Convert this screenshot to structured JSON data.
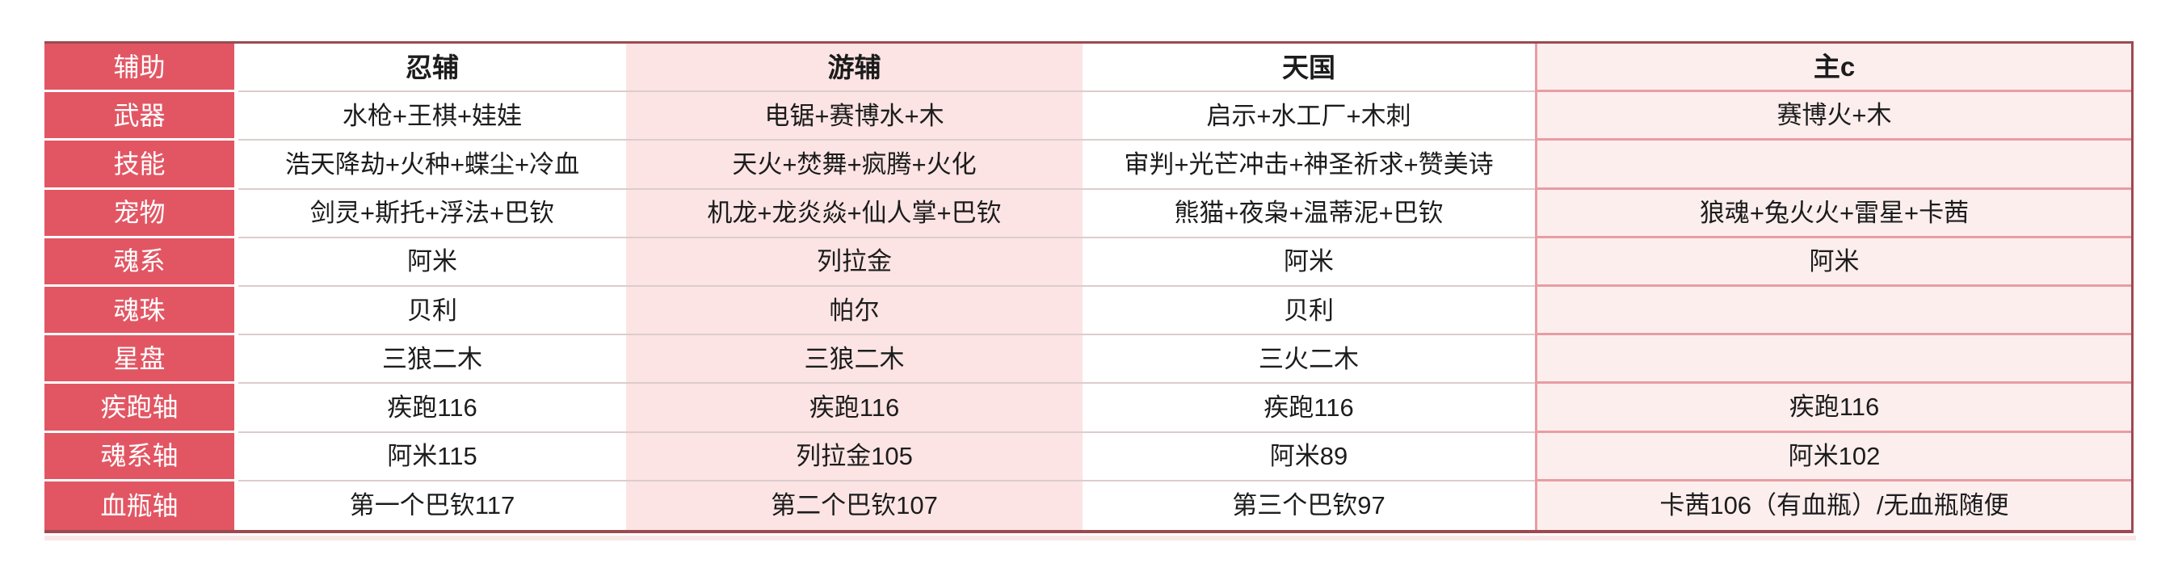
{
  "table": {
    "rows": [
      {
        "label": "辅助",
        "cells": [
          "忍辅",
          "游辅",
          "天国",
          "主c"
        ]
      },
      {
        "label": "武器",
        "cells": [
          "水枪+王棋+娃娃",
          "电锯+赛博水+木",
          "启示+水工厂+木刺",
          "赛博火+木"
        ]
      },
      {
        "label": "技能",
        "cells": [
          "浩天降劫+火种+蝶尘+冷血",
          "天火+焚舞+疯腾+火化",
          "审判+光芒冲击+神圣祈求+赞美诗",
          ""
        ]
      },
      {
        "label": "宠物",
        "cells": [
          "剑灵+斯托+浮法+巴钦",
          "机龙+龙炎焱+仙人掌+巴钦",
          "熊猫+夜枭+温蒂泥+巴钦",
          "狼魂+兔火火+雷星+卡茜"
        ]
      },
      {
        "label": "魂系",
        "cells": [
          "阿米",
          "列拉金",
          "阿米",
          "阿米"
        ]
      },
      {
        "label": "魂珠",
        "cells": [
          "贝利",
          "帕尔",
          "贝利",
          ""
        ]
      },
      {
        "label": "星盘",
        "cells": [
          "三狼二木",
          "三狼二木",
          "三火二木",
          ""
        ]
      },
      {
        "label": "疾跑轴",
        "cells": [
          "疾跑116",
          "疾跑116",
          "疾跑116",
          "疾跑116"
        ]
      },
      {
        "label": "魂系轴",
        "cells": [
          "阿米115",
          "列拉金105",
          "阿米89",
          "阿米102"
        ]
      },
      {
        "label": "血瓶轴",
        "cells": [
          "第一个巴钦117",
          "第二个巴钦107",
          "第三个巴钦97",
          "卡茜106（有血瓶）/无血瓶随便"
        ]
      }
    ]
  },
  "colors": {
    "label_column_bg": "#e25663",
    "label_column_text": "#ffffff",
    "pink_column_bg": "#fce4e4",
    "light_pink_column_bg": "#fdeeee",
    "light_pink_column_border": "#e89da3",
    "outer_border": "#9b4a52",
    "row_divider": "#ddcccc",
    "cell_text": "#1c1c1c"
  }
}
